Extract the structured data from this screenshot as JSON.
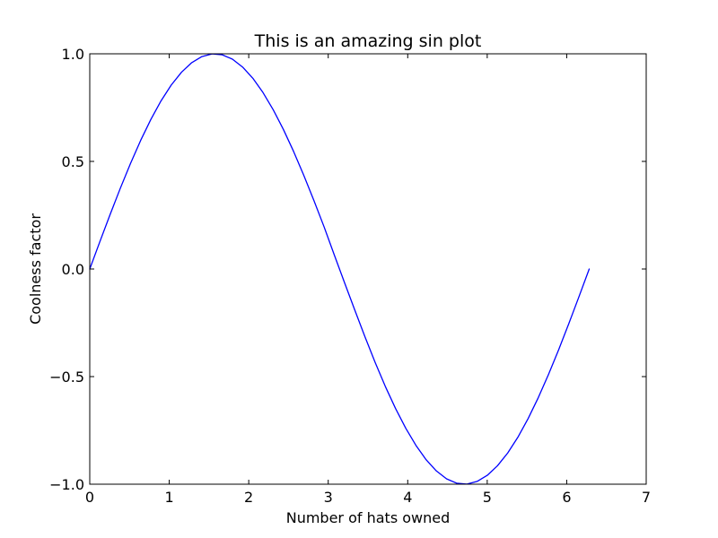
{
  "chart_data": {
    "type": "line",
    "title": "This is an amazing sin plot",
    "xlabel": "Number of hats owned",
    "ylabel": "Coolness factor",
    "xlim": [
      0,
      7
    ],
    "ylim": [
      -1.0,
      1.0
    ],
    "xticks": [
      0,
      1,
      2,
      3,
      4,
      5,
      6,
      7
    ],
    "xtick_labels": [
      "0",
      "1",
      "2",
      "3",
      "4",
      "5",
      "6",
      "7"
    ],
    "yticks": [
      -1.0,
      -0.5,
      0.0,
      0.5,
      1.0
    ],
    "ytick_labels": [
      "−1.0",
      "−0.5",
      "0.0",
      "0.5",
      "1.0"
    ],
    "grid": false,
    "line_color": "#0000ff",
    "series": [
      {
        "x": [
          0,
          0.1282,
          0.2565,
          0.3847,
          0.5129,
          0.6411,
          0.7694,
          0.8976,
          1.0258,
          1.1541,
          1.2823,
          1.4105,
          1.5387,
          1.667,
          1.7952,
          1.9234,
          2.0517,
          2.1799,
          2.3081,
          2.4363,
          2.5646,
          2.6928,
          2.821,
          2.9493,
          3.0775,
          3.2057,
          3.3339,
          3.4622,
          3.5904,
          3.7186,
          3.8468,
          3.9751,
          4.1033,
          4.2315,
          4.3598,
          4.488,
          4.6162,
          4.7444,
          4.8727,
          5.0009,
          5.1291,
          5.2574,
          5.3856,
          5.5138,
          5.642,
          5.7703,
          5.8985,
          6.0267,
          6.155,
          6.2832
        ],
        "y": [
          0,
          0.1279,
          0.2537,
          0.3753,
          0.4907,
          0.5981,
          0.6957,
          0.7818,
          0.8551,
          0.9144,
          0.9587,
          0.9872,
          0.9995,
          0.9954,
          0.9749,
          0.9382,
          0.8862,
          0.8197,
          0.74,
          0.6482,
          0.546,
          0.435,
          0.3172,
          0.1945,
          0.0641,
          -0.0641,
          -0.1905,
          -0.315,
          -0.4342,
          -0.546,
          -0.6482,
          -0.74,
          -0.8197,
          -0.8862,
          -0.9382,
          -0.9749,
          -0.9954,
          -0.9995,
          -0.9872,
          -0.9587,
          -0.9144,
          -0.8551,
          -0.7818,
          -0.6957,
          -0.5981,
          -0.4907,
          -0.3753,
          -0.2537,
          -0.1279,
          0
        ]
      }
    ]
  }
}
